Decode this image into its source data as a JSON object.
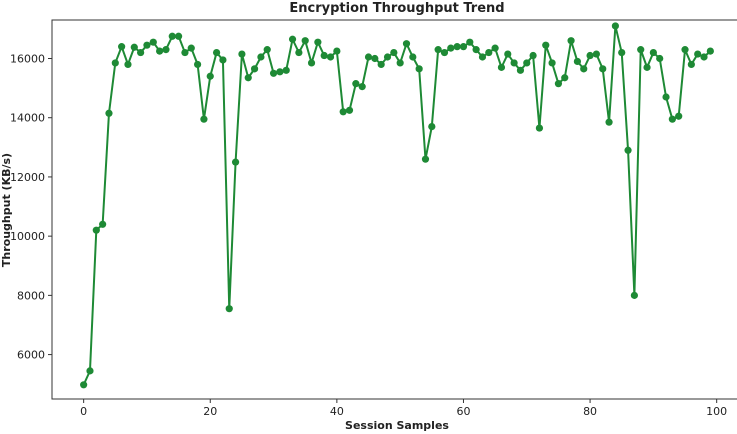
{
  "chart_data": {
    "type": "line",
    "title": "Encryption Throughput Trend",
    "xlabel": "Session Samples",
    "ylabel": "Throughput (KB/s)",
    "xlim": [
      -5,
      104
    ],
    "ylim": [
      4500,
      17300
    ],
    "xticks": [
      0,
      20,
      40,
      60,
      80,
      100
    ],
    "yticks": [
      6000,
      8000,
      10000,
      12000,
      14000,
      16000
    ],
    "grid": false,
    "legend": "none",
    "color": "#1e8a35",
    "series": [
      {
        "x": [
          0,
          1,
          2,
          3,
          4,
          5,
          6,
          7,
          8,
          9,
          10,
          11,
          12,
          13,
          14,
          15,
          16,
          17,
          18,
          19,
          20,
          21,
          22,
          23,
          24,
          25,
          26,
          27,
          28,
          29,
          30,
          31,
          32,
          33,
          34,
          35,
          36,
          37,
          38,
          39,
          40,
          41,
          42,
          43,
          44,
          45,
          46,
          47,
          48,
          49,
          50,
          51,
          52,
          53,
          54,
          55,
          56,
          57,
          58,
          59,
          60,
          61,
          62,
          63,
          64,
          65,
          66,
          67,
          68,
          69,
          70,
          71,
          72,
          73,
          74,
          75,
          76,
          77,
          78,
          79,
          80,
          81,
          82,
          83,
          84,
          85,
          86,
          87,
          88,
          89,
          90,
          91,
          92,
          93,
          94,
          95,
          96,
          97,
          98,
          99
        ],
        "y": [
          4980,
          5450,
          10200,
          10400,
          14150,
          15850,
          16400,
          15800,
          16380,
          16200,
          16450,
          16550,
          16250,
          16300,
          16750,
          16750,
          16200,
          16350,
          15800,
          13950,
          15400,
          16200,
          15950,
          7550,
          12500,
          16150,
          15350,
          15650,
          16050,
          16300,
          15500,
          15550,
          15600,
          16650,
          16200,
          16600,
          15850,
          16550,
          16100,
          16050,
          16250,
          14200,
          14250,
          15150,
          15050,
          16050,
          16000,
          15800,
          16050,
          16200,
          15850,
          16500,
          16050,
          15650,
          12600,
          13700,
          16300,
          16200,
          16350,
          16400,
          16400,
          16550,
          16300,
          16050,
          16200,
          16350,
          15700,
          16150,
          15850,
          15600,
          15850,
          16100,
          13650,
          16450,
          15850,
          15150,
          15350,
          16600,
          15900,
          15650,
          16100,
          16150,
          15650,
          13850,
          17100,
          16200,
          12900,
          8000,
          16300,
          15700,
          16200,
          16000,
          14700,
          13950,
          14050,
          16300,
          15800,
          16150,
          16050,
          16250
        ]
      }
    ]
  }
}
